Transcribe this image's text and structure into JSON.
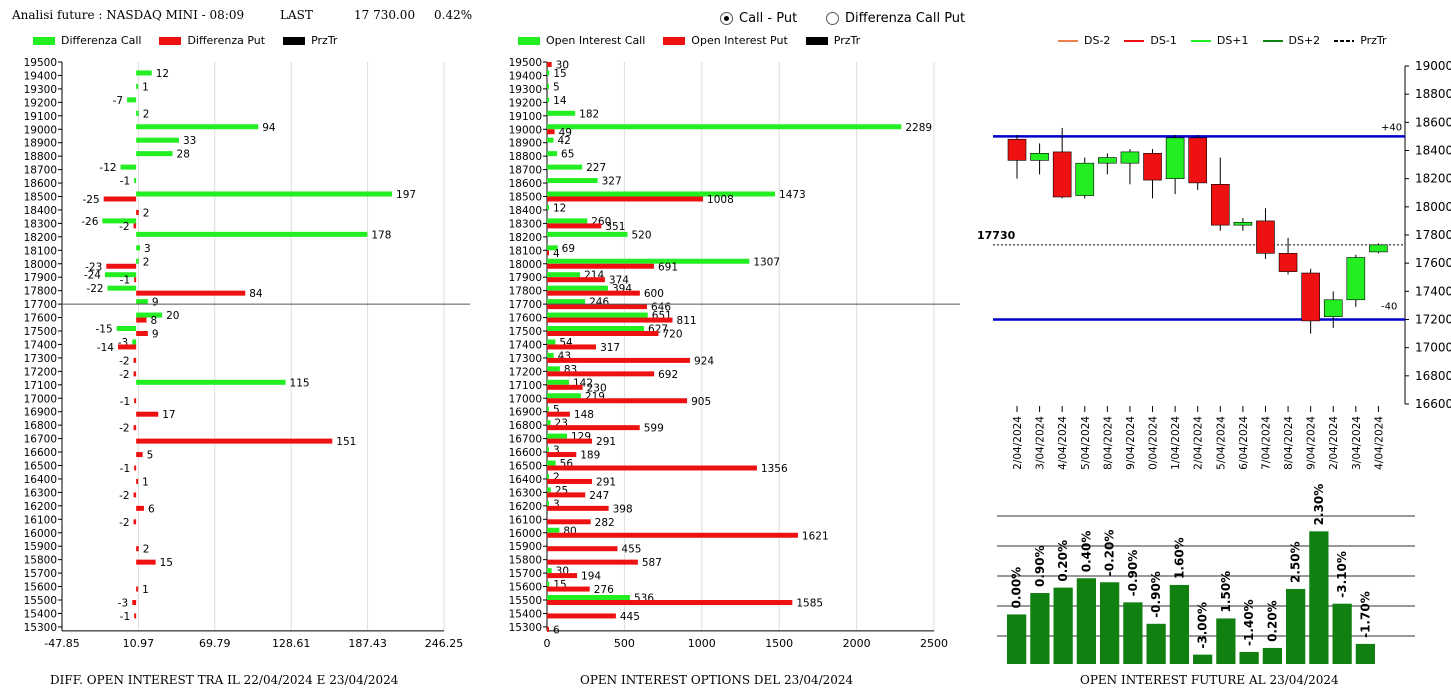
{
  "header": {
    "title": "Analisi future : NASDAQ MINI - 08:09",
    "last_label": "LAST",
    "last_value": "17 730.00",
    "change": "0.42%"
  },
  "mode": {
    "options": [
      "Call - Put",
      "Differenza Call Put"
    ],
    "selected": "Call - Put"
  },
  "colors": {
    "call": "#22ee22",
    "put": "#ee1111",
    "line": "#0000cc",
    "dark_green": "#108010"
  },
  "legends": {
    "diff": [
      "Differenza Call",
      "Differenza Put",
      "PrzTr"
    ],
    "oi": [
      "Open Interest Call",
      "Open Interest Put",
      "PrzTr"
    ],
    "candle": [
      "DS-2",
      "DS-1",
      "DS+1",
      "DS+2",
      "PrzTr"
    ]
  },
  "captions": {
    "diff": "DIFF. OPEN INTEREST TRA IL 22/04/2024 E 23/04/2024",
    "oi": "OPEN INTEREST OPTIONS DEL 23/04/2024",
    "future": "OPEN INTEREST FUTURE AL 23/04/2024"
  },
  "chart_data": [
    {
      "id": "diff",
      "type": "bar",
      "orientation": "horizontal",
      "strikes": [
        19500,
        19400,
        19300,
        19200,
        19100,
        19000,
        18900,
        18800,
        18700,
        18600,
        18500,
        18400,
        18300,
        18200,
        18100,
        18000,
        17900,
        17800,
        17700,
        17600,
        17500,
        17400,
        17300,
        17200,
        17100,
        17000,
        16900,
        16800,
        16700,
        16600,
        16500,
        16400,
        16300,
        16200,
        16100,
        16000,
        15900,
        15800,
        15700,
        15600,
        15500,
        15400,
        15300
      ],
      "series": [
        {
          "name": "Differenza Call",
          "values": [
            null,
            12,
            1,
            -7,
            2,
            94,
            33,
            28,
            -12,
            -1,
            197,
            null,
            -26,
            178,
            3,
            2,
            -24,
            -22,
            9,
            20,
            -15,
            -3,
            null,
            null,
            115,
            null,
            null,
            null,
            null,
            null,
            null,
            null,
            null,
            null,
            null,
            null,
            null,
            null,
            null,
            null,
            null,
            null,
            null
          ]
        },
        {
          "name": "Differenza Put",
          "values": [
            null,
            null,
            null,
            null,
            null,
            null,
            null,
            null,
            null,
            null,
            -25,
            2,
            -2,
            null,
            null,
            -23,
            -1,
            84,
            null,
            8,
            9,
            -14,
            -2,
            -2,
            null,
            -1,
            17,
            -2,
            151,
            5,
            -1,
            1,
            -2,
            6,
            -2,
            null,
            2,
            15,
            null,
            1,
            -3,
            -1,
            null
          ]
        }
      ],
      "xticks": [
        "-47.85",
        "10.97",
        "69.79",
        "128.61",
        "187.43",
        "246.25"
      ],
      "xlim": [
        -47.85,
        246.25
      ],
      "przTr": 17730
    },
    {
      "id": "oi",
      "type": "bar",
      "orientation": "horizontal",
      "strikes": [
        19500,
        19400,
        19300,
        19200,
        19100,
        19000,
        18900,
        18800,
        18700,
        18600,
        18500,
        18400,
        18300,
        18200,
        18100,
        18000,
        17900,
        17800,
        17700,
        17600,
        17500,
        17400,
        17300,
        17200,
        17100,
        17000,
        16900,
        16800,
        16700,
        16600,
        16500,
        16400,
        16300,
        16200,
        16100,
        16000,
        15900,
        15800,
        15700,
        15600,
        15500,
        15400,
        15300
      ],
      "series": [
        {
          "name": "Open Interest Call",
          "values": [
            null,
            15,
            5,
            14,
            182,
            2289,
            42,
            65,
            227,
            327,
            1473,
            12,
            260,
            520,
            69,
            1307,
            214,
            394,
            246,
            651,
            627,
            54,
            43,
            83,
            142,
            219,
            5,
            23,
            129,
            3,
            56,
            2,
            25,
            3,
            null,
            80,
            null,
            null,
            30,
            15,
            536,
            null,
            null
          ]
        },
        {
          "name": "Open Interest Put",
          "values": [
            30,
            null,
            null,
            null,
            null,
            49,
            null,
            null,
            null,
            null,
            1008,
            null,
            351,
            null,
            4,
            691,
            374,
            600,
            646,
            811,
            720,
            317,
            924,
            692,
            230,
            905,
            148,
            599,
            291,
            189,
            1356,
            291,
            247,
            398,
            282,
            1621,
            455,
            587,
            194,
            276,
            1585,
            445,
            6
          ]
        }
      ],
      "xticks": [
        "0",
        "500",
        "1000",
        "1500",
        "2000",
        "2500"
      ],
      "xlim": [
        0,
        2500
      ],
      "przTr": 17730
    },
    {
      "id": "candles",
      "type": "candlestick",
      "dates": [
        "02/04/2024",
        "03/04/2024",
        "04/04/2024",
        "05/04/2024",
        "08/04/2024",
        "09/04/2024",
        "10/04/2024",
        "11/04/2024",
        "12/04/2024",
        "15/04/2024",
        "16/04/2024",
        "17/04/2024",
        "18/04/2024",
        "19/04/2024",
        "22/04/2024",
        "23/04/2024",
        "24/04/2024"
      ],
      "ohlc": [
        [
          18480,
          18510,
          18200,
          18330
        ],
        [
          18330,
          18450,
          18230,
          18380
        ],
        [
          18390,
          18560,
          18060,
          18070
        ],
        [
          18080,
          18350,
          18060,
          18310
        ],
        [
          18310,
          18380,
          18230,
          18350
        ],
        [
          18310,
          18410,
          18160,
          18390
        ],
        [
          18380,
          18410,
          18060,
          18190
        ],
        [
          18200,
          18510,
          18090,
          18490
        ],
        [
          18490,
          18510,
          18120,
          18170
        ],
        [
          18160,
          18350,
          17830,
          17870
        ],
        [
          17870,
          17920,
          17830,
          17890
        ],
        [
          17900,
          17990,
          17630,
          17670
        ],
        [
          17670,
          17780,
          17520,
          17540
        ],
        [
          17530,
          17560,
          17100,
          17190
        ],
        [
          17220,
          17400,
          17140,
          17340
        ],
        [
          17340,
          17660,
          17290,
          17640
        ],
        [
          17680,
          17740,
          17670,
          17730
        ]
      ],
      "ylim": [
        16600,
        19000
      ],
      "yticks": [
        16600,
        16800,
        17000,
        17200,
        17400,
        17600,
        17800,
        18000,
        18200,
        18400,
        18600,
        18800,
        19000
      ],
      "lines": [
        {
          "label": "+40",
          "y": 18500
        },
        {
          "label": "-40",
          "y": 17200
        }
      ],
      "last_label": "17730",
      "last": 17730
    },
    {
      "id": "future",
      "type": "bar",
      "values": [
        0.0,
        0.9,
        0.2,
        0.4,
        -0.2,
        -0.9,
        -0.9,
        1.6,
        -3.0,
        1.5,
        -1.4,
        0.2,
        2.5,
        2.3,
        -3.1,
        -1.7
      ],
      "labels": [
        "0.00%",
        "0.90%",
        "0.20%",
        "0.40%",
        "-0.20%",
        "-0.90%",
        "-0.90%",
        "1.60%",
        "-3.00%",
        "1.50%",
        "-1.40%",
        "0.20%",
        "2.50%",
        "2.30%",
        "-3.10%",
        "-1.70%"
      ],
      "heights": [
        0.37,
        0.53,
        0.57,
        0.64,
        0.61,
        0.46,
        0.3,
        0.59,
        0.07,
        0.34,
        0.09,
        0.12,
        0.56,
        0.99,
        0.45,
        0.15
      ]
    }
  ]
}
